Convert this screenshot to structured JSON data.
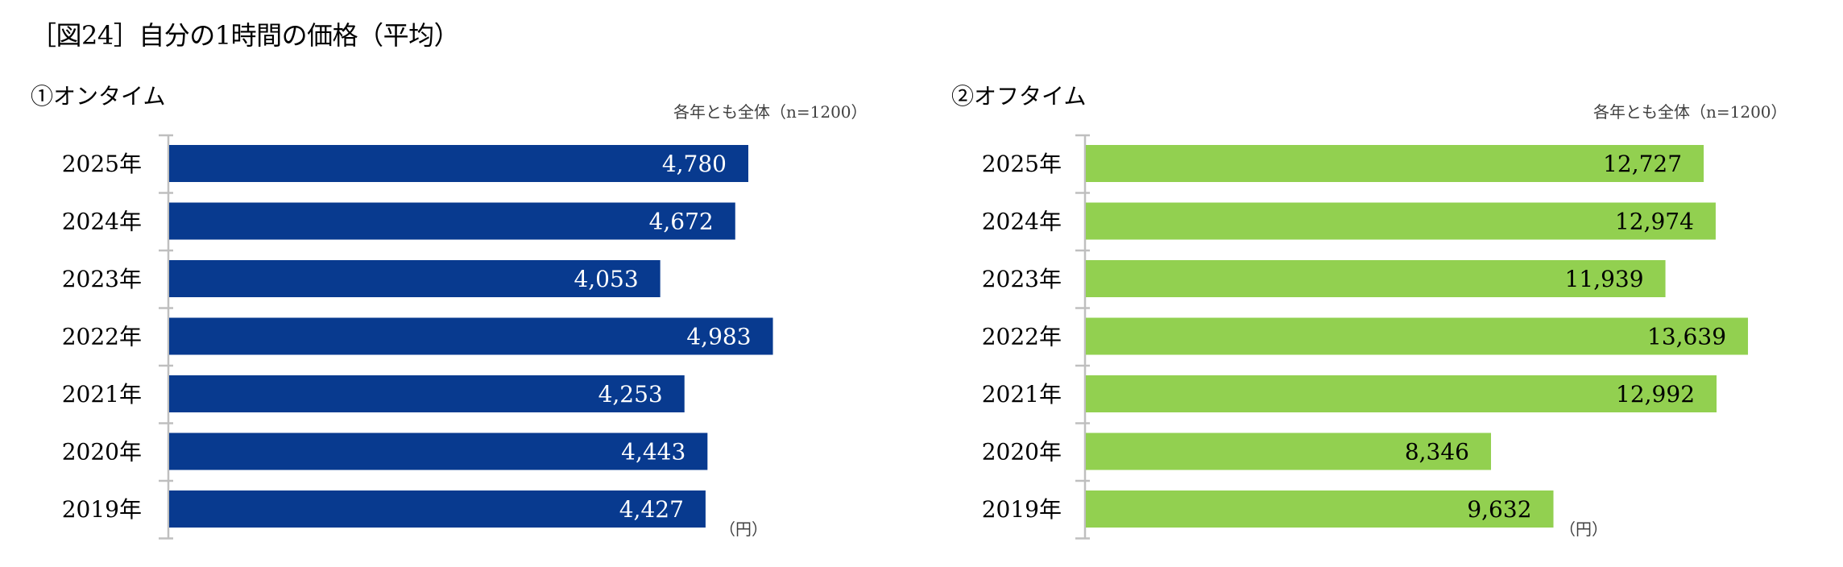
{
  "header": {
    "title": "［図24］自分の1時間の価格（平均）"
  },
  "colors": {
    "ontime_bar": "#083a8f",
    "offtime_bar": "#92d050",
    "axis": "#bfbfbf",
    "ontime_label": "#ffffff",
    "offtime_label": "#000000"
  },
  "chart_data": [
    {
      "type": "bar",
      "orientation": "horizontal",
      "title": "①オンタイム",
      "note": "各年とも全体（n=1200）",
      "unit_label": "（円）",
      "categories": [
        "2025年",
        "2024年",
        "2023年",
        "2022年",
        "2021年",
        "2020年",
        "2019年"
      ],
      "values": [
        4780,
        4672,
        4053,
        4983,
        4253,
        4443,
        4427
      ],
      "value_labels": [
        "4,780",
        "4,672",
        "4,053",
        "4,983",
        "4,253",
        "4,443",
        "4,427"
      ],
      "xlim": [
        0,
        5000
      ],
      "grid": false,
      "legend": "none"
    },
    {
      "type": "bar",
      "orientation": "horizontal",
      "title": "②オフタイム",
      "note": "各年とも全体（n=1200）",
      "unit_label": "（円）",
      "categories": [
        "2025年",
        "2024年",
        "2023年",
        "2022年",
        "2021年",
        "2020年",
        "2019年"
      ],
      "values": [
        12727,
        12974,
        11939,
        13639,
        12992,
        8346,
        9632
      ],
      "value_labels": [
        "12,727",
        "12,974",
        "11,939",
        "13,639",
        "12,992",
        "8,346",
        "9,632"
      ],
      "xlim": [
        0,
        14000
      ],
      "grid": false,
      "legend": "none"
    }
  ]
}
